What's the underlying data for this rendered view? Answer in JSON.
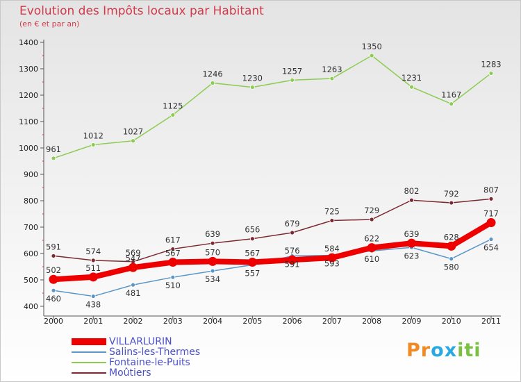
{
  "title": "Evolution des Impôts locaux par Habitant",
  "subtitle": "(en € et par an)",
  "brand": {
    "letters": [
      "P",
      "r",
      "o",
      "x",
      "i",
      "t",
      "i"
    ],
    "colors": [
      "#f08a24",
      "#f08a24",
      "#2aa9e0",
      "#2aa9e0",
      "#7bc043",
      "#7bc043",
      "#7bc043"
    ]
  },
  "chart_data": {
    "type": "line",
    "title": "Evolution des Impôts locaux par Habitant",
    "ylabel": "(en € et par an)",
    "xlabel": "",
    "ylim": [
      400,
      1400
    ],
    "yticks": [
      "400",
      "500",
      "600",
      "700",
      "800",
      "900",
      "1000",
      "1100",
      "1200",
      "1300",
      "1400"
    ],
    "x": [
      "2000",
      "2001",
      "2002",
      "2003",
      "2004",
      "2005",
      "2006",
      "2007",
      "2008",
      "2009",
      "2010",
      "2011"
    ],
    "grid": false,
    "legend_position": "bottom-left",
    "series": [
      {
        "name": "VILLARLURIN",
        "color": "#ee0000",
        "values": [
          502,
          511,
          547,
          567,
          570,
          567,
          576,
          584,
          622,
          639,
          628,
          717
        ],
        "labels": [
          "502",
          "511",
          "547",
          "567",
          "570",
          "567",
          "576",
          "584",
          "622",
          "639",
          "628",
          "717"
        ]
      },
      {
        "name": "Salins-les-Thermes",
        "color": "#5a96c8",
        "values": [
          460,
          438,
          481,
          510,
          534,
          557,
          591,
          593,
          610,
          623,
          580,
          654
        ],
        "labels": [
          "460",
          "438",
          "481",
          "510",
          "534",
          "557",
          "591",
          "593",
          "610",
          "623",
          "580",
          "654"
        ]
      },
      {
        "name": "Fontaine-le-Puits",
        "color": "#8ccc50",
        "values": [
          961,
          1012,
          1027,
          1125,
          1246,
          1230,
          1257,
          1263,
          1350,
          1231,
          1167,
          1283
        ],
        "labels": [
          "961",
          "1012",
          "1027",
          "1125",
          "1246",
          "1230",
          "1257",
          "1263",
          "1350",
          "1231",
          "1167",
          "1283"
        ]
      },
      {
        "name": "Moûtiers",
        "color": "#7a2a30",
        "values": [
          591,
          574,
          569,
          617,
          639,
          656,
          679,
          725,
          729,
          802,
          792,
          807
        ],
        "labels": [
          "591",
          "574",
          "569",
          "617",
          "639",
          "656",
          "679",
          "725",
          "729",
          "802",
          "792",
          "807"
        ]
      }
    ]
  }
}
